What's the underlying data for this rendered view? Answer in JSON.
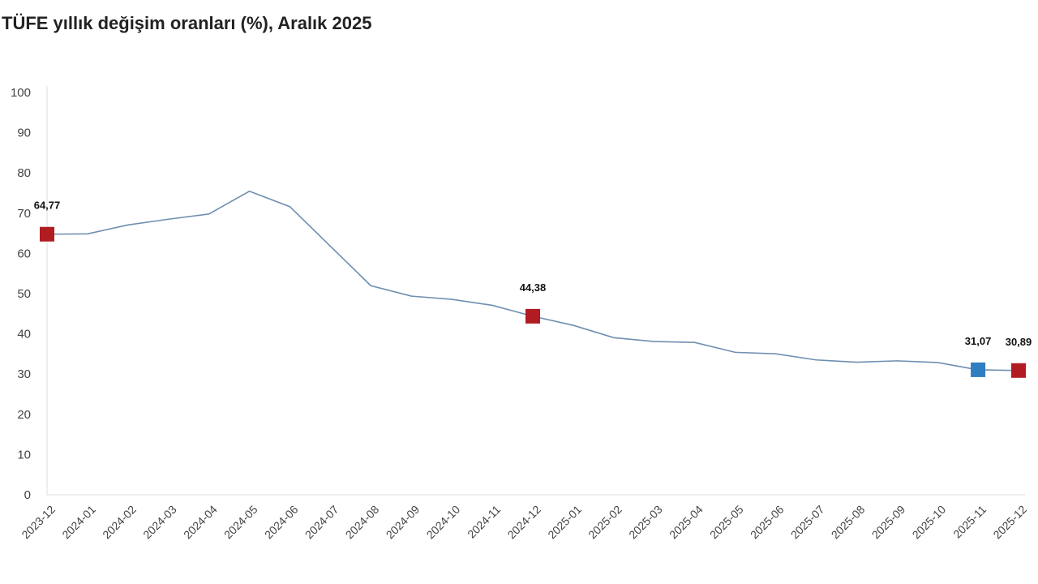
{
  "chart_data": {
    "type": "line",
    "title": "TÜFE yıllık değişim oranları (%), Aralık 2025",
    "xlabel": "",
    "ylabel": "",
    "ylim": [
      0,
      100
    ],
    "yticks": [
      0,
      10,
      20,
      30,
      40,
      50,
      60,
      70,
      80,
      90,
      100
    ],
    "grid": false,
    "categories": [
      "2023-12",
      "2024-01",
      "2024-02",
      "2024-03",
      "2024-04",
      "2024-05",
      "2024-06",
      "2024-07",
      "2024-08",
      "2024-09",
      "2024-10",
      "2024-11",
      "2024-12",
      "2025-01",
      "2025-02",
      "2025-03",
      "2025-04",
      "2025-05",
      "2025-06",
      "2025-07",
      "2025-08",
      "2025-09",
      "2025-10",
      "2025-11",
      "2025-12"
    ],
    "series": [
      {
        "values": [
          64.77,
          64.86,
          67.07,
          68.5,
          69.8,
          75.45,
          71.6,
          61.78,
          51.97,
          49.38,
          48.58,
          47.09,
          44.38,
          42.12,
          39.05,
          38.1,
          37.86,
          35.41,
          35.05,
          33.52,
          32.95,
          33.29,
          32.87,
          31.07,
          30.89
        ],
        "color": "#6f8fb0"
      }
    ],
    "highlights": [
      {
        "category": "2023-12",
        "label": "64,77",
        "color": "#b01c22"
      },
      {
        "category": "2024-12",
        "label": "44,38",
        "color": "#b01c22"
      },
      {
        "category": "2025-11",
        "label": "31,07",
        "color": "#2f7ec0"
      },
      {
        "category": "2025-12",
        "label": "30,89",
        "color": "#b01c22"
      }
    ]
  }
}
